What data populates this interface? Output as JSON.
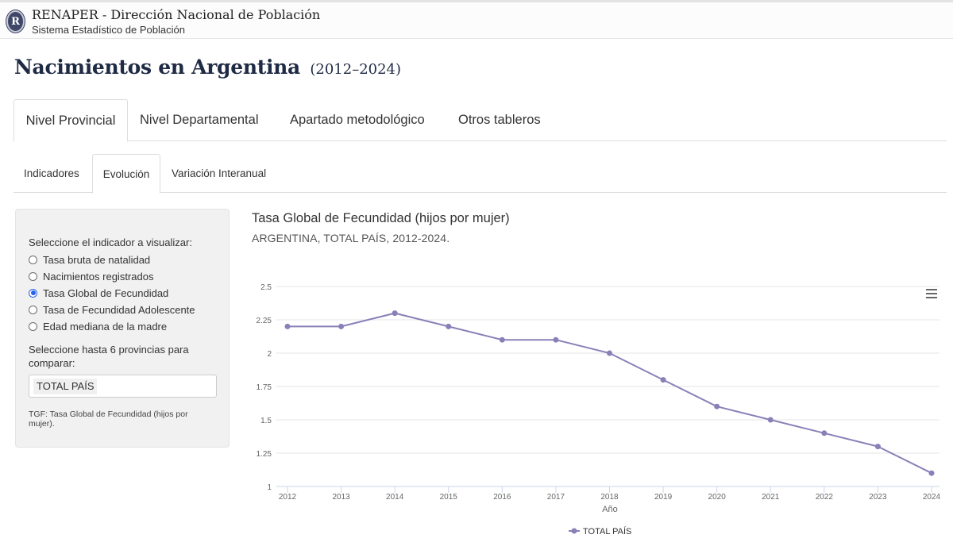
{
  "header": {
    "logo_letter": "R",
    "org_name": "RENAPER - Dirección Nacional de Población",
    "org_subtitle": "Sistema Estadístico de Población"
  },
  "page": {
    "title": "Nacimientos en Argentina",
    "title_years": "(2012–2024)"
  },
  "main_tabs": [
    {
      "label": "Nivel Provincial",
      "active": true
    },
    {
      "label": "Nivel Departamental",
      "active": false
    },
    {
      "label": "Apartado metodológico",
      "active": false
    },
    {
      "label": "Otros tableros",
      "active": false
    }
  ],
  "sub_tabs": [
    {
      "label": "Indicadores",
      "active": false
    },
    {
      "label": "Evolución",
      "active": true
    },
    {
      "label": "Variación Interanual",
      "active": false
    }
  ],
  "panel": {
    "indicator_label": "Seleccione el indicador a visualizar:",
    "indicators": [
      {
        "label": "Tasa bruta de natalidad",
        "checked": false
      },
      {
        "label": "Nacimientos registrados",
        "checked": false
      },
      {
        "label": "Tasa Global de Fecundidad",
        "checked": true
      },
      {
        "label": "Tasa de Fecundidad Adolescente",
        "checked": false
      },
      {
        "label": "Edad mediana de la madre",
        "checked": false
      }
    ],
    "province_label_line1": "Seleccione hasta 6 provincias para",
    "province_label_line2": "comparar:",
    "selected_province": "TOTAL PAÍS",
    "note": "TGF: Tasa Global de Fecundidad (hijos por mujer)."
  },
  "chart_data": {
    "type": "line",
    "title": "Tasa Global de Fecundidad (hijos por mujer)",
    "subtitle": "ARGENTINA, TOTAL PAÍS, 2012-2024.",
    "xlabel": "Año",
    "ylabel": "",
    "x": [
      "2012",
      "2013",
      "2014",
      "2015",
      "2016",
      "2017",
      "2018",
      "2019",
      "2020",
      "2021",
      "2022",
      "2023",
      "2024"
    ],
    "yticks": [
      "1",
      "1.25",
      "1.5",
      "1.75",
      "2",
      "2.25",
      "2.5"
    ],
    "ylim": [
      1,
      2.5
    ],
    "grid": true,
    "legend_position": "bottom-center",
    "series": [
      {
        "name": "TOTAL PAÍS",
        "color": "#8a80b8",
        "values": [
          2.2,
          2.2,
          2.3,
          2.2,
          2.1,
          2.1,
          2.0,
          1.8,
          1.6,
          1.5,
          1.4,
          1.3,
          1.1
        ]
      }
    ],
    "menu_icon": "hamburger-menu-icon"
  }
}
